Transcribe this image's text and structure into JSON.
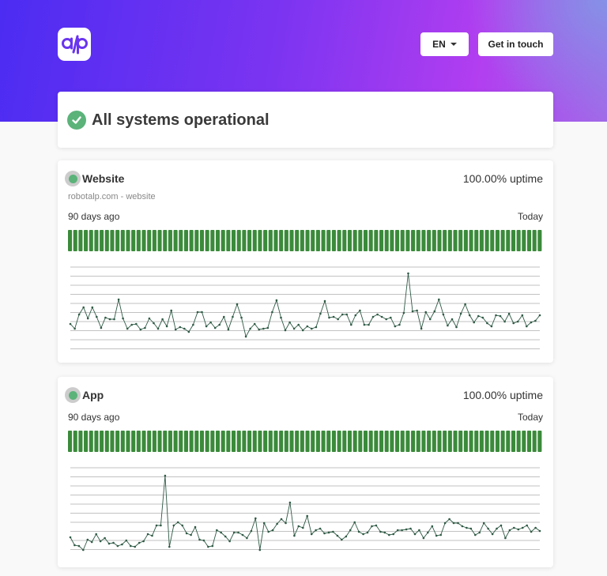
{
  "header": {
    "logo_text": "a/p",
    "language_label": "EN",
    "contact_label": "Get in touch"
  },
  "status": {
    "text": "All systems operational"
  },
  "colors": {
    "operational": "#5bb37a",
    "bar": "#3b8a3b",
    "line": "#2f5a45",
    "grid": "#555555"
  },
  "services": [
    {
      "name": "Website",
      "uptime": "100.00% uptime",
      "subtitle": "robotalp.com - website",
      "range_start": "90 days ago",
      "range_end": "Today",
      "bar_count": 90,
      "response_series": [
        72,
        78,
        60,
        51,
        65,
        51,
        63,
        77,
        64,
        66,
        66,
        41,
        65,
        78,
        73,
        72,
        79,
        77,
        65,
        71,
        78,
        66,
        75,
        55,
        79,
        76,
        78,
        82,
        73,
        57,
        57,
        75,
        70,
        77,
        73,
        63,
        79,
        63,
        47,
        64,
        88,
        78,
        72,
        79,
        78,
        77,
        57,
        42,
        64,
        80,
        70,
        78,
        73,
        80,
        75,
        78,
        76,
        59,
        43,
        64,
        63,
        66,
        60,
        60,
        73,
        61,
        55,
        73,
        73,
        63,
        60,
        63,
        66,
        64,
        75,
        73,
        58,
        8,
        56,
        55,
        78,
        57,
        66,
        56,
        41,
        60,
        74,
        66,
        76,
        59,
        47,
        61,
        70,
        62,
        64,
        71,
        75,
        61,
        62,
        69,
        59,
        71,
        69,
        61,
        75,
        70,
        68,
        61
      ]
    },
    {
      "name": "App",
      "uptime": "100.00% uptime",
      "range_start": "90 days ago",
      "range_end": "Today",
      "bar_count": 90,
      "response_series": [
        88,
        98,
        99,
        104,
        91,
        94,
        84,
        93,
        89,
        96,
        95,
        99,
        97,
        92,
        99,
        100,
        95,
        93,
        84,
        86,
        73,
        73,
        10,
        100,
        73,
        69,
        73,
        83,
        85,
        75,
        91,
        92,
        100,
        99,
        79,
        82,
        87,
        93,
        82,
        82,
        85,
        89,
        80,
        64,
        104,
        70,
        81,
        79,
        71,
        65,
        70,
        44,
        86,
        74,
        76,
        61,
        84,
        79,
        77,
        83,
        82,
        81,
        86,
        91,
        87,
        79,
        69,
        81,
        84,
        82,
        74,
        73,
        81,
        82,
        85,
        84,
        79,
        79,
        78,
        77,
        84,
        79,
        89,
        82,
        74,
        86,
        85,
        70,
        65,
        70,
        70,
        74,
        76,
        77,
        85,
        82,
        70,
        77,
        84,
        77,
        73,
        89,
        79,
        76,
        78,
        76,
        73,
        81,
        76,
        80
      ]
    }
  ]
}
